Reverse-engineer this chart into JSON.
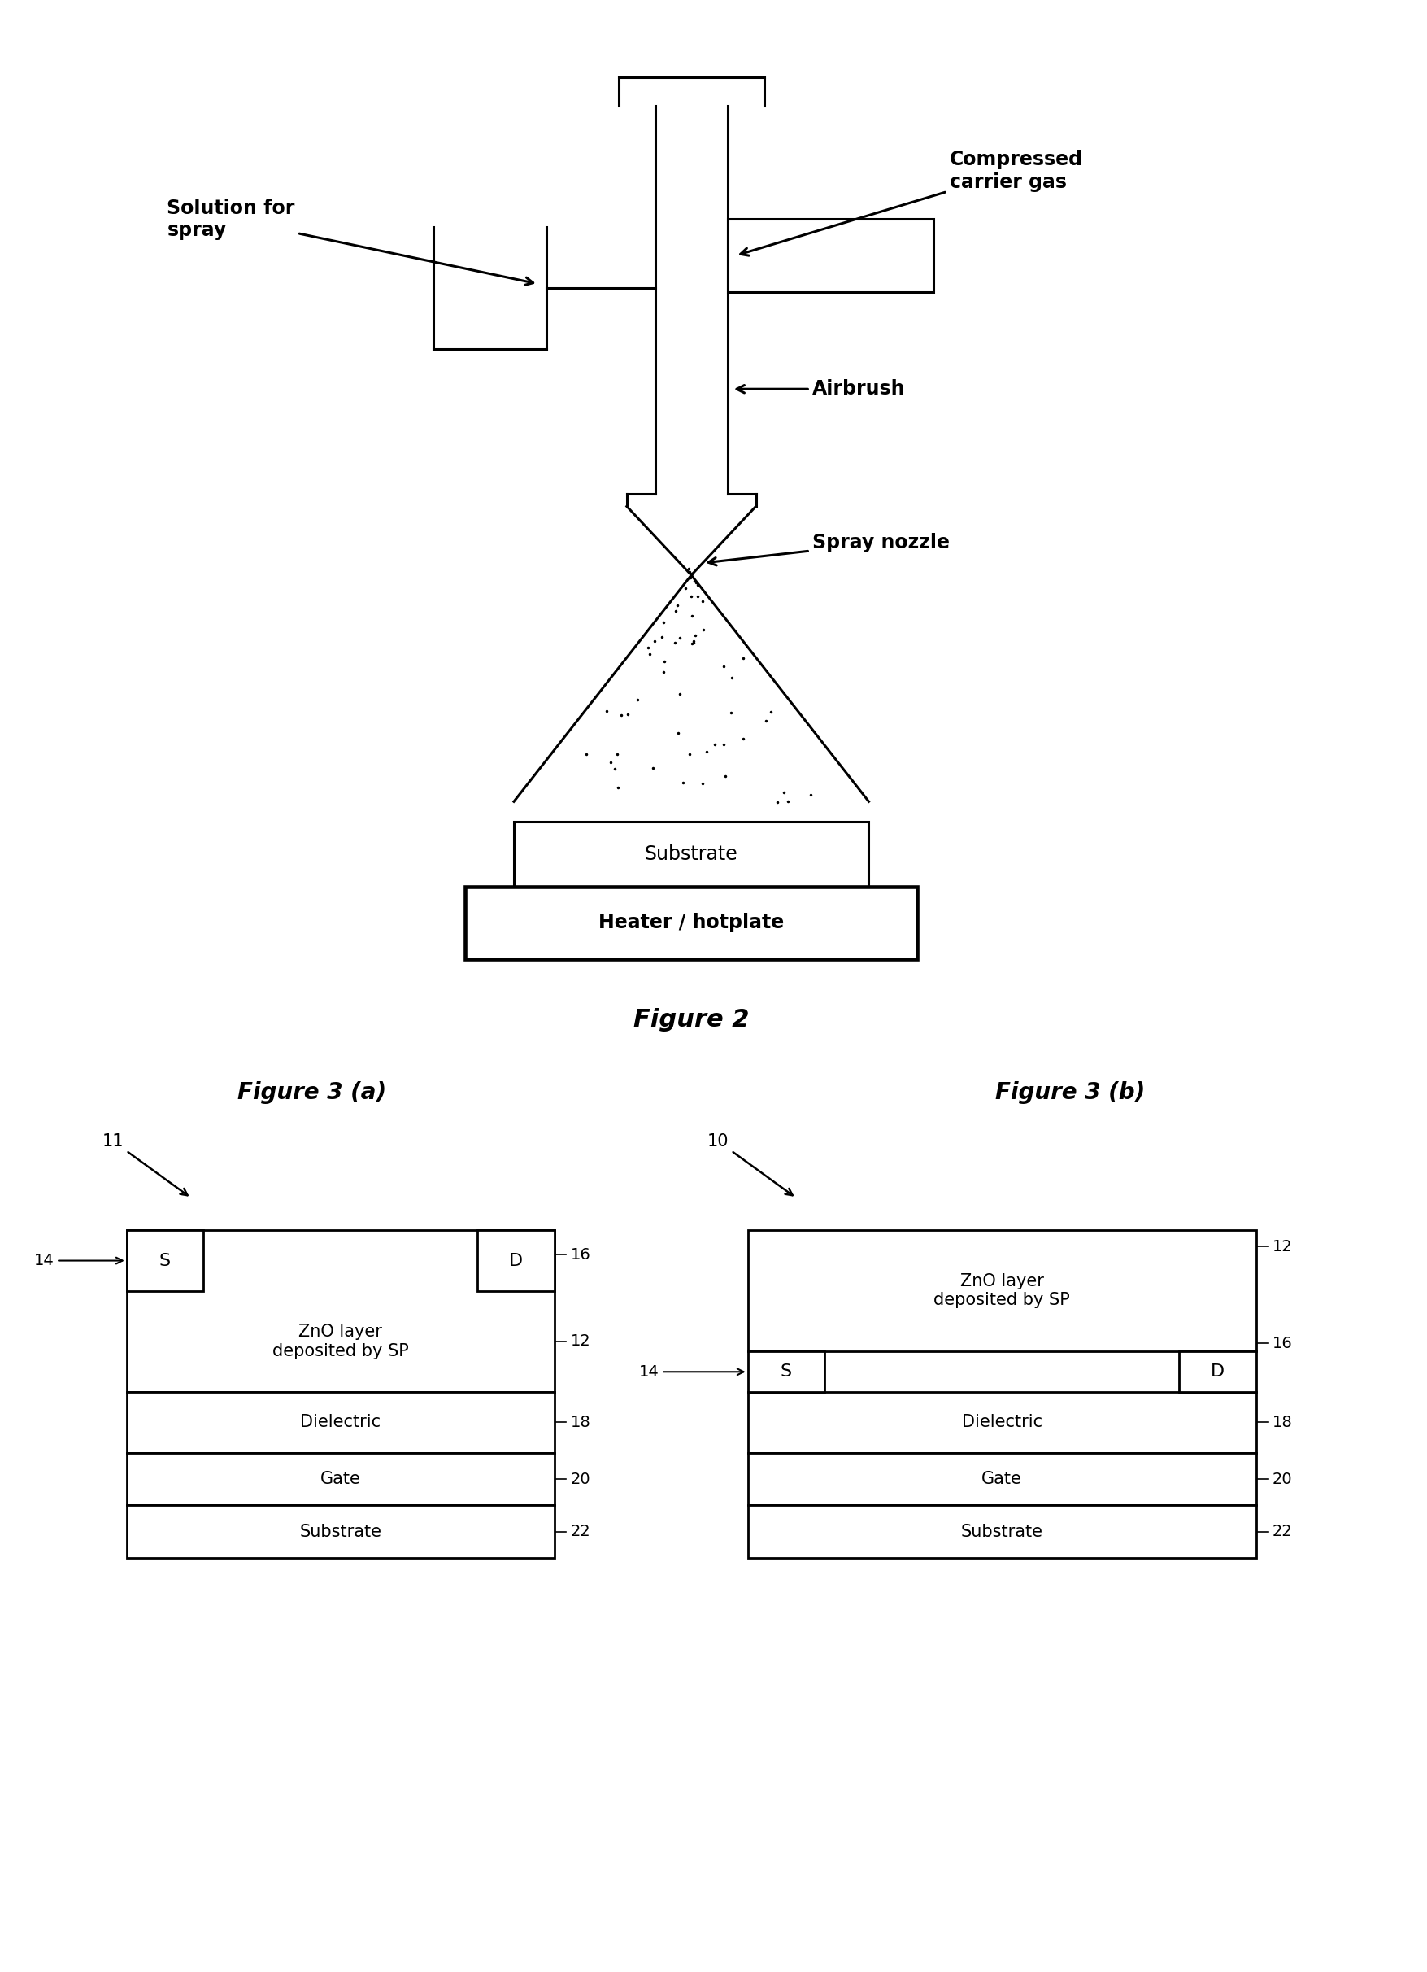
{
  "bg_color": "#ffffff",
  "fig_width": 17.56,
  "fig_height": 24.24,
  "fig2_title": "Figure 2",
  "fig3a_title": "Figure 3 (a)",
  "fig3b_title": "Figure 3 (b)",
  "labels": {
    "solution": "Solution for\nspray",
    "compressed": "Compressed\ncarrier gas",
    "airbrush": "Airbrush",
    "spray_nozzle": "Spray nozzle",
    "substrate2": "Substrate",
    "heater": "Heater / hotplate",
    "11": "11",
    "10": "10",
    "S": "S",
    "D": "D",
    "14": "14",
    "16": "16",
    "12": "12",
    "18": "18",
    "20": "20",
    "22": "22",
    "zno": "ZnO layer\ndeposited by SP",
    "dielectric": "Dielectric",
    "gate": "Gate",
    "substrate": "Substrate"
  }
}
